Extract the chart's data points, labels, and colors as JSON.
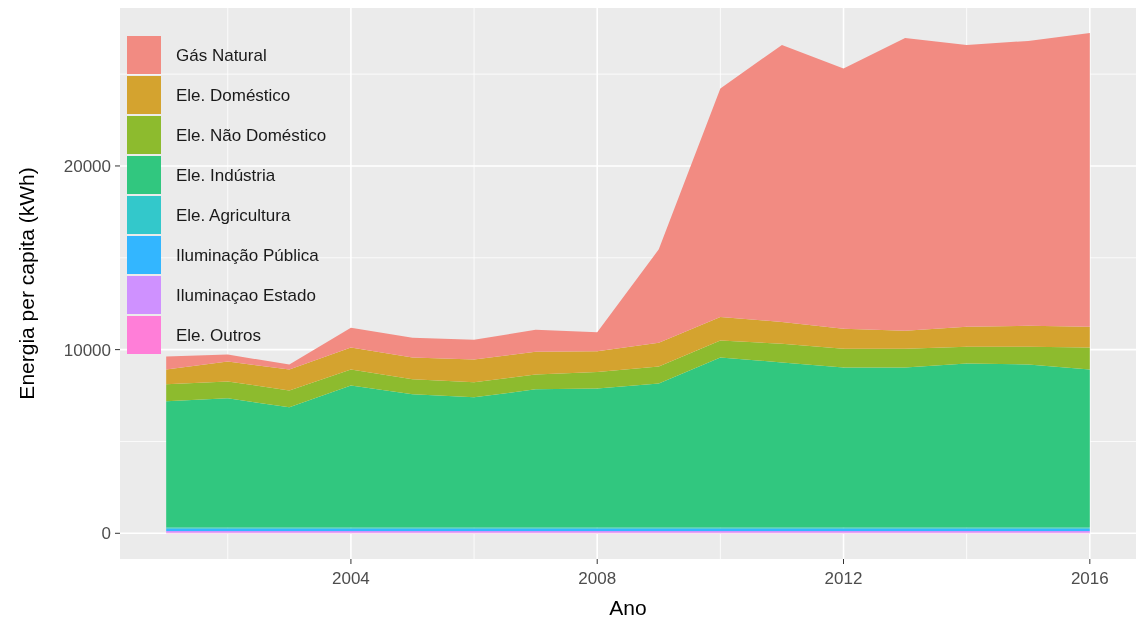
{
  "chart_data": {
    "type": "area",
    "stacked": true,
    "xlabel": "Ano",
    "ylabel": "Energia per capita (kWh)",
    "x": [
      2001,
      2002,
      2003,
      2004,
      2005,
      2006,
      2007,
      2008,
      2009,
      2010,
      2011,
      2012,
      2013,
      2014,
      2015,
      2016
    ],
    "xlim": [
      2000.25,
      2016.75
    ],
    "xticks": [
      2004,
      2008,
      2012,
      2016
    ],
    "ylim": [
      -1400,
      28600
    ],
    "yticks": [
      0,
      10000,
      20000
    ],
    "grid": true,
    "legend": "top left",
    "series": [
      {
        "name": "Ele. Outros",
        "color": "#ff7ed8",
        "values": [
          40,
          40,
          40,
          40,
          40,
          40,
          40,
          40,
          40,
          40,
          40,
          40,
          40,
          40,
          40,
          40
        ]
      },
      {
        "name": "Iluminaçao Estado",
        "color": "#cf91ff",
        "values": [
          90,
          90,
          90,
          90,
          90,
          90,
          90,
          90,
          90,
          90,
          90,
          90,
          90,
          90,
          90,
          90
        ]
      },
      {
        "name": "Iluminação Pública",
        "color": "#33b6ff",
        "values": [
          120,
          120,
          120,
          120,
          120,
          120,
          120,
          120,
          120,
          120,
          120,
          120,
          120,
          120,
          120,
          120
        ]
      },
      {
        "name": "Ele. Agricultura",
        "color": "#33c8cb",
        "values": [
          60,
          60,
          60,
          60,
          60,
          60,
          60,
          60,
          60,
          60,
          60,
          60,
          60,
          60,
          60,
          60
        ]
      },
      {
        "name": "Ele. Indústria",
        "color": "#31c77f",
        "values": [
          6880,
          7040,
          6550,
          7740,
          7260,
          7090,
          7530,
          7570,
          7850,
          9260,
          8990,
          8720,
          8720,
          8930,
          8880,
          8610
        ]
      },
      {
        "name": "Ele. Não Doméstico",
        "color": "#8dbb2e",
        "values": [
          920,
          920,
          920,
          870,
          810,
          820,
          810,
          900,
          920,
          920,
          1020,
          1020,
          1020,
          920,
          970,
          1190
        ]
      },
      {
        "name": "Ele. Doméstico",
        "color": "#d4a32f",
        "values": [
          810,
          1080,
          1140,
          1190,
          1190,
          1240,
          1240,
          1130,
          1300,
          1290,
          1190,
          1090,
          980,
          1080,
          1140,
          1130
        ]
      },
      {
        "name": "Gás Natural",
        "color": "#f28b82",
        "values": [
          700,
          380,
          270,
          1080,
          1080,
          1080,
          1190,
          1030,
          5080,
          12440,
          15080,
          14160,
          15940,
          15350,
          15510,
          16000
        ]
      }
    ]
  }
}
